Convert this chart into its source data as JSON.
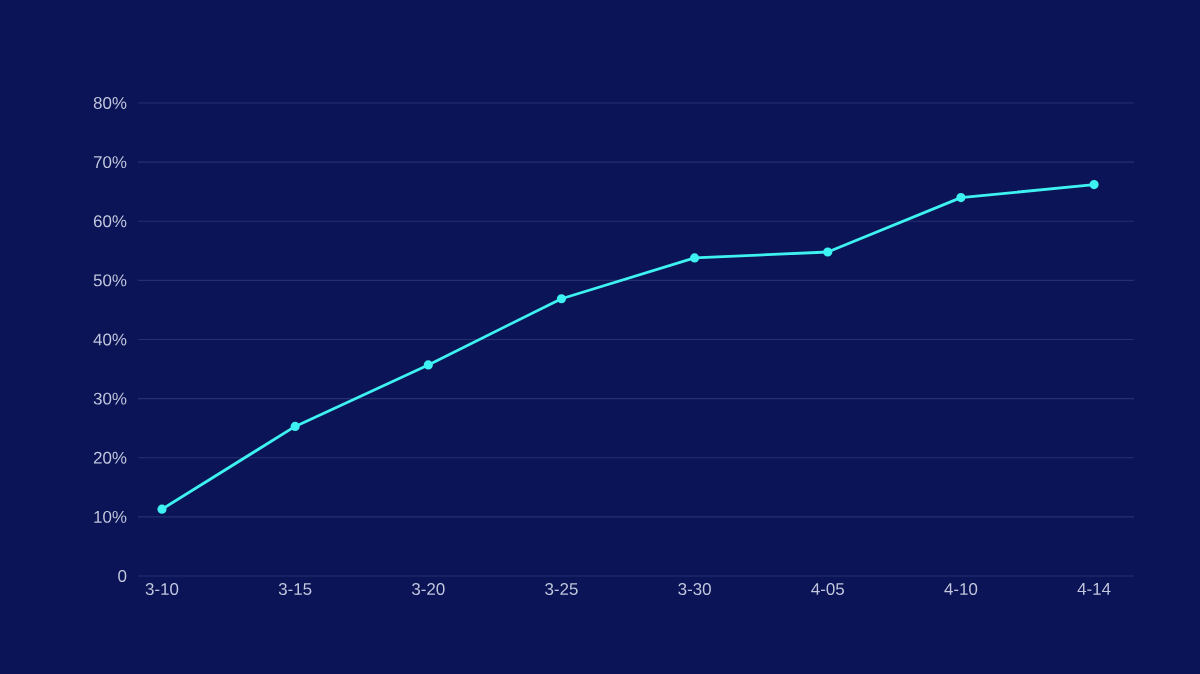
{
  "chart_data": {
    "type": "line",
    "categories": [
      "3-10",
      "3-15",
      "3-20",
      "3-25",
      "3-30",
      "4-05",
      "4-10",
      "4-14"
    ],
    "values": [
      11.3,
      25.3,
      35.7,
      46.9,
      53.8,
      54.8,
      64.0,
      66.2
    ],
    "color": "#3ef2f2",
    "ylim": [
      0,
      80
    ],
    "yticks": [
      0,
      {
        "value": 10,
        "label": "10%"
      },
      {
        "value": 20,
        "label": "20%"
      },
      {
        "value": 30,
        "label": "30%"
      },
      {
        "value": 40,
        "label": "40%"
      },
      {
        "value": 50,
        "label": "50%"
      },
      {
        "value": 60,
        "label": "60%"
      },
      {
        "value": 70,
        "label": "70%"
      },
      {
        "value": 80,
        "label": "80%"
      }
    ],
    "grid": "y",
    "marker": "circle",
    "line_style": "solid"
  }
}
